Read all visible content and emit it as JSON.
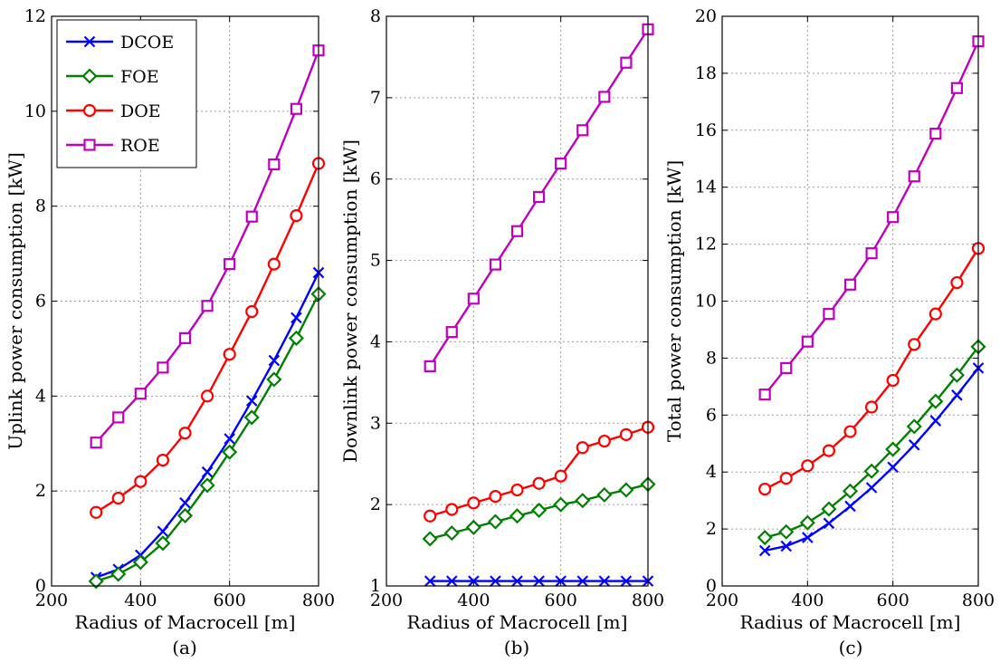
{
  "chart_data": [
    {
      "type": "line",
      "caption": "(a)",
      "xlabel": "Radius of Macrocell [m]",
      "ylabel": "Uplink power consumption [kW]",
      "xlim": [
        200,
        800
      ],
      "ylim": [
        0,
        12
      ],
      "xticks": [
        200,
        400,
        600,
        800
      ],
      "yticks": [
        0,
        2,
        4,
        6,
        8,
        10,
        12
      ],
      "grid": true,
      "legend": "top-left",
      "x": [
        300,
        350,
        400,
        450,
        500,
        550,
        600,
        650,
        700,
        750,
        800
      ],
      "series": [
        {
          "name": "DCOE",
          "color": "#0000ff",
          "marker": "x",
          "values": [
            0.18,
            0.35,
            0.65,
            1.15,
            1.75,
            2.4,
            3.1,
            3.9,
            4.75,
            5.65,
            6.6
          ]
        },
        {
          "name": "FOE",
          "color": "#008000",
          "marker": "diamond",
          "values": [
            0.1,
            0.25,
            0.5,
            0.9,
            1.48,
            2.12,
            2.82,
            3.55,
            4.35,
            5.22,
            6.15
          ]
        },
        {
          "name": "DOE",
          "color": "#ff0000",
          "marker": "circle",
          "values": [
            1.55,
            1.85,
            2.2,
            2.65,
            3.22,
            4.0,
            4.88,
            5.78,
            6.78,
            7.8,
            8.9
          ]
        },
        {
          "name": "ROE",
          "color": "#bf00bf",
          "marker": "square",
          "values": [
            3.02,
            3.55,
            4.05,
            4.6,
            5.22,
            5.9,
            6.78,
            7.78,
            8.88,
            10.05,
            11.28
          ]
        }
      ]
    },
    {
      "type": "line",
      "caption": "(b)",
      "xlabel": "Radius of Macrocell [m]",
      "ylabel": "Downlink power consumption [kW]",
      "xlim": [
        200,
        800
      ],
      "ylim": [
        1,
        8
      ],
      "xticks": [
        200,
        400,
        600,
        800
      ],
      "yticks": [
        1,
        2,
        3,
        4,
        5,
        6,
        7,
        8
      ],
      "grid": true,
      "x": [
        300,
        350,
        400,
        450,
        500,
        550,
        600,
        650,
        700,
        750,
        800
      ],
      "series": [
        {
          "name": "DCOE",
          "color": "#0000ff",
          "marker": "x",
          "values": [
            1.06,
            1.06,
            1.06,
            1.06,
            1.06,
            1.06,
            1.06,
            1.06,
            1.06,
            1.06,
            1.06
          ]
        },
        {
          "name": "FOE",
          "color": "#008000",
          "marker": "diamond",
          "values": [
            1.58,
            1.65,
            1.72,
            1.79,
            1.86,
            1.93,
            2.0,
            2.05,
            2.12,
            2.18,
            2.25
          ]
        },
        {
          "name": "DOE",
          "color": "#ff0000",
          "marker": "circle",
          "values": [
            1.86,
            1.94,
            2.02,
            2.1,
            2.18,
            2.26,
            2.35,
            2.7,
            2.78,
            2.86,
            2.95
          ]
        },
        {
          "name": "ROE",
          "color": "#bf00bf",
          "marker": "square",
          "values": [
            3.7,
            4.12,
            4.53,
            4.95,
            5.36,
            5.78,
            6.19,
            6.6,
            7.01,
            7.43,
            7.84
          ]
        }
      ]
    },
    {
      "type": "line",
      "caption": "(c)",
      "xlabel": "Radius of Macrocell [m]",
      "ylabel": "Total power consumption [kW]",
      "xlim": [
        200,
        800
      ],
      "ylim": [
        0,
        20
      ],
      "xticks": [
        200,
        400,
        600,
        800
      ],
      "yticks": [
        0,
        2,
        4,
        6,
        8,
        10,
        12,
        14,
        16,
        18,
        20
      ],
      "grid": true,
      "x": [
        300,
        350,
        400,
        450,
        500,
        550,
        600,
        650,
        700,
        750,
        800
      ],
      "series": [
        {
          "name": "DCOE",
          "color": "#0000ff",
          "marker": "x",
          "values": [
            1.24,
            1.4,
            1.7,
            2.2,
            2.8,
            3.45,
            4.17,
            4.95,
            5.8,
            6.7,
            7.65
          ]
        },
        {
          "name": "FOE",
          "color": "#008000",
          "marker": "diamond",
          "values": [
            1.7,
            1.9,
            2.22,
            2.7,
            3.33,
            4.03,
            4.8,
            5.6,
            6.48,
            7.4,
            8.4
          ]
        },
        {
          "name": "DOE",
          "color": "#ff0000",
          "marker": "circle",
          "values": [
            3.4,
            3.78,
            4.22,
            4.75,
            5.42,
            6.28,
            7.22,
            8.48,
            9.55,
            10.65,
            11.85
          ]
        },
        {
          "name": "ROE",
          "color": "#bf00bf",
          "marker": "square",
          "values": [
            6.72,
            7.65,
            8.58,
            9.55,
            10.58,
            11.68,
            12.95,
            14.38,
            15.88,
            17.48,
            19.12
          ]
        }
      ]
    }
  ]
}
